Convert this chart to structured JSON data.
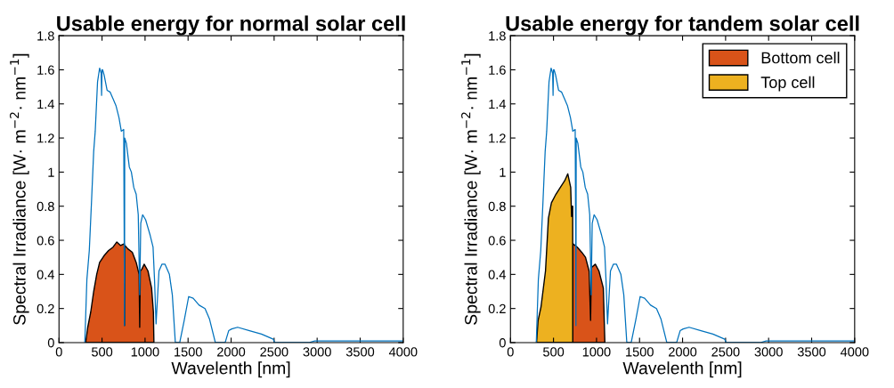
{
  "chart_data": [
    {
      "type": "line",
      "title": "Usable energy for normal solar cell",
      "xlabel": "Wavelenth [nm]",
      "ylabel": "Spectral Irradiance [W· m$^{−2}$· nm$^{−1}$]",
      "xlim": [
        0,
        4000
      ],
      "ylim": [
        0,
        1.8
      ],
      "xticks": [
        0,
        500,
        1000,
        1500,
        2000,
        2500,
        3000,
        3500,
        4000
      ],
      "yticks": [
        0,
        0.2,
        0.4,
        0.6,
        0.8,
        1,
        1.2,
        1.4,
        1.6,
        1.8
      ],
      "grid": false,
      "legend": false,
      "series": [
        {
          "type": "line",
          "color": "#0072bd",
          "x": [
            300,
            324,
            352,
            379,
            403,
            421,
            448,
            472,
            490,
            495,
            500,
            507,
            524,
            559,
            593,
            628,
            662,
            697,
            724,
            752,
            758,
            761,
            764,
            783,
            817,
            841,
            869,
            897,
            921,
            938,
            950,
            972,
            1007,
            1059,
            1093,
            1110,
            1128,
            1162,
            1197,
            1231,
            1283,
            1317,
            1352,
            1403,
            1455,
            1507,
            1559,
            1628,
            1697,
            1748,
            1817,
            1931,
            1972,
            2007,
            2076,
            2214,
            2352,
            2490,
            2507,
            2903,
            2972,
            3500,
            4000
          ],
          "values": [
            0,
            0.37,
            0.54,
            0.84,
            1.12,
            1.24,
            1.53,
            1.61,
            1.58,
            1.45,
            1.6,
            1.6,
            1.57,
            1.48,
            1.47,
            1.43,
            1.39,
            1.32,
            1.24,
            1.25,
            0.6,
            0.1,
            1.2,
            1.17,
            1.03,
            1.0,
            0.91,
            0.87,
            0.75,
            0.28,
            0.7,
            0.75,
            0.72,
            0.63,
            0.56,
            0.37,
            0.11,
            0.42,
            0.46,
            0.46,
            0.4,
            0.28,
            0,
            0,
            0.13,
            0.27,
            0.26,
            0.22,
            0.2,
            0.14,
            0,
            0,
            0.07,
            0.08,
            0.09,
            0.07,
            0.05,
            0.02,
            0,
            0,
            0.01,
            0.01,
            0.01
          ]
        },
        {
          "type": "area",
          "color": "#d95319",
          "x": [
            310,
            334,
            369,
            403,
            438,
            472,
            524,
            576,
            628,
            672,
            714,
            759,
            762,
            765,
            800,
            852,
            897,
            931,
            938,
            945,
            962,
            990,
            1034,
            1076,
            1097,
            1103
          ],
          "values": [
            0,
            0.09,
            0.18,
            0.3,
            0.4,
            0.47,
            0.51,
            0.54,
            0.56,
            0.59,
            0.57,
            0.58,
            0.1,
            0.57,
            0.55,
            0.53,
            0.47,
            0.4,
            0.09,
            0.42,
            0.43,
            0.46,
            0.42,
            0.32,
            0.18,
            0
          ]
        }
      ]
    },
    {
      "type": "line",
      "title": "Usable energy for tandem solar cell",
      "xlabel": "Wavelenth [nm]",
      "ylabel": "Spectral Irradiance [W· m$^{−2}$· nm$^{−1}$]",
      "xlim": [
        0,
        4000
      ],
      "ylim": [
        0,
        1.8
      ],
      "xticks": [
        0,
        500,
        1000,
        1500,
        2000,
        2500,
        3000,
        3500,
        4000
      ],
      "yticks": [
        0,
        0.2,
        0.4,
        0.6,
        0.8,
        1,
        1.2,
        1.4,
        1.6,
        1.8
      ],
      "grid": false,
      "legend": "top right",
      "series": [
        {
          "type": "line",
          "color": "#0072bd",
          "x": [
            300,
            324,
            352,
            379,
            403,
            421,
            448,
            472,
            490,
            495,
            500,
            507,
            524,
            559,
            593,
            628,
            662,
            697,
            724,
            752,
            758,
            761,
            764,
            783,
            817,
            841,
            869,
            897,
            921,
            938,
            950,
            972,
            1007,
            1059,
            1093,
            1110,
            1128,
            1162,
            1197,
            1231,
            1283,
            1317,
            1352,
            1403,
            1455,
            1507,
            1559,
            1628,
            1697,
            1748,
            1817,
            1931,
            1972,
            2007,
            2076,
            2214,
            2352,
            2490,
            2507,
            2903,
            2972,
            3500,
            4000
          ],
          "values": [
            0,
            0.37,
            0.54,
            0.84,
            1.12,
            1.24,
            1.53,
            1.61,
            1.58,
            1.45,
            1.6,
            1.6,
            1.57,
            1.48,
            1.47,
            1.43,
            1.39,
            1.32,
            1.24,
            1.25,
            0.6,
            0.1,
            1.2,
            1.17,
            1.03,
            1.0,
            0.91,
            0.87,
            0.75,
            0.28,
            0.7,
            0.75,
            0.72,
            0.63,
            0.56,
            0.37,
            0.11,
            0.42,
            0.46,
            0.46,
            0.4,
            0.28,
            0,
            0,
            0.13,
            0.27,
            0.26,
            0.22,
            0.2,
            0.14,
            0,
            0,
            0.07,
            0.08,
            0.09,
            0.07,
            0.05,
            0.02,
            0,
            0,
            0.01,
            0.01,
            0.01
          ]
        },
        {
          "type": "area",
          "name": "Bottom cell",
          "color": "#d95319",
          "x": [
            724,
            725,
            776,
            828,
            872,
            914,
            931,
            940,
            986,
            1028,
            1079,
            1097
          ],
          "values": [
            0,
            0.58,
            0.56,
            0.53,
            0.5,
            0.42,
            0.13,
            0.44,
            0.46,
            0.42,
            0.32,
            0
          ]
        },
        {
          "type": "area",
          "name": "Top cell",
          "color": "#edb120",
          "x": [
            303,
            321,
            355,
            407,
            441,
            476,
            528,
            579,
            631,
            666,
            700,
            710,
            718,
            723,
            724
          ],
          "values": [
            0,
            0.13,
            0.21,
            0.42,
            0.73,
            0.82,
            0.87,
            0.91,
            0.95,
            0.99,
            0.91,
            0.74,
            0.8,
            0.8,
            0
          ]
        }
      ]
    }
  ]
}
